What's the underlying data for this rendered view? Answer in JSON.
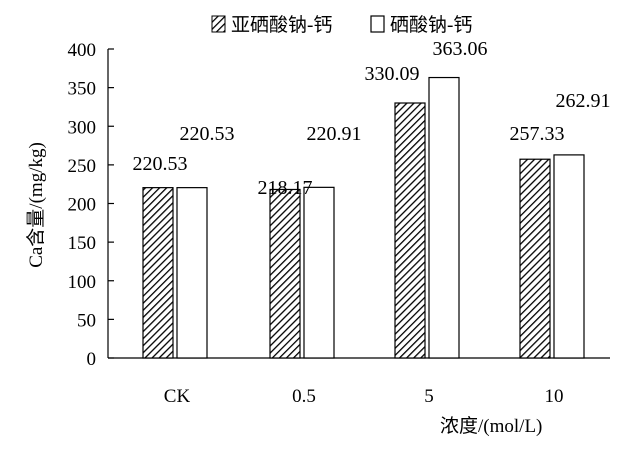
{
  "chart_data": {
    "type": "bar",
    "categories": [
      "CK",
      "0.5",
      "5",
      "10"
    ],
    "series": [
      {
        "name": "亚硒酸钠-钙",
        "values": [
          220.53,
          218.17,
          330.09,
          257.33
        ],
        "labels": [
          "220.53",
          "218.17",
          "330.09",
          "257.33"
        ],
        "fill": "hatched"
      },
      {
        "name": "硒酸钠-钙",
        "values": [
          220.53,
          220.91,
          363.06,
          262.91
        ],
        "labels": [
          "220.53",
          "220.91",
          "363.06",
          "262.91"
        ],
        "fill": "white"
      }
    ],
    "xlabel": "浓度/(mol/L)",
    "ylabel": "Ca含量/(mg/kg)",
    "ylim": [
      0,
      400
    ],
    "yticks": [
      "0",
      "50",
      "100",
      "150",
      "200",
      "250",
      "300",
      "350",
      "400"
    ],
    "grid": false,
    "legend_position": "top-center"
  }
}
